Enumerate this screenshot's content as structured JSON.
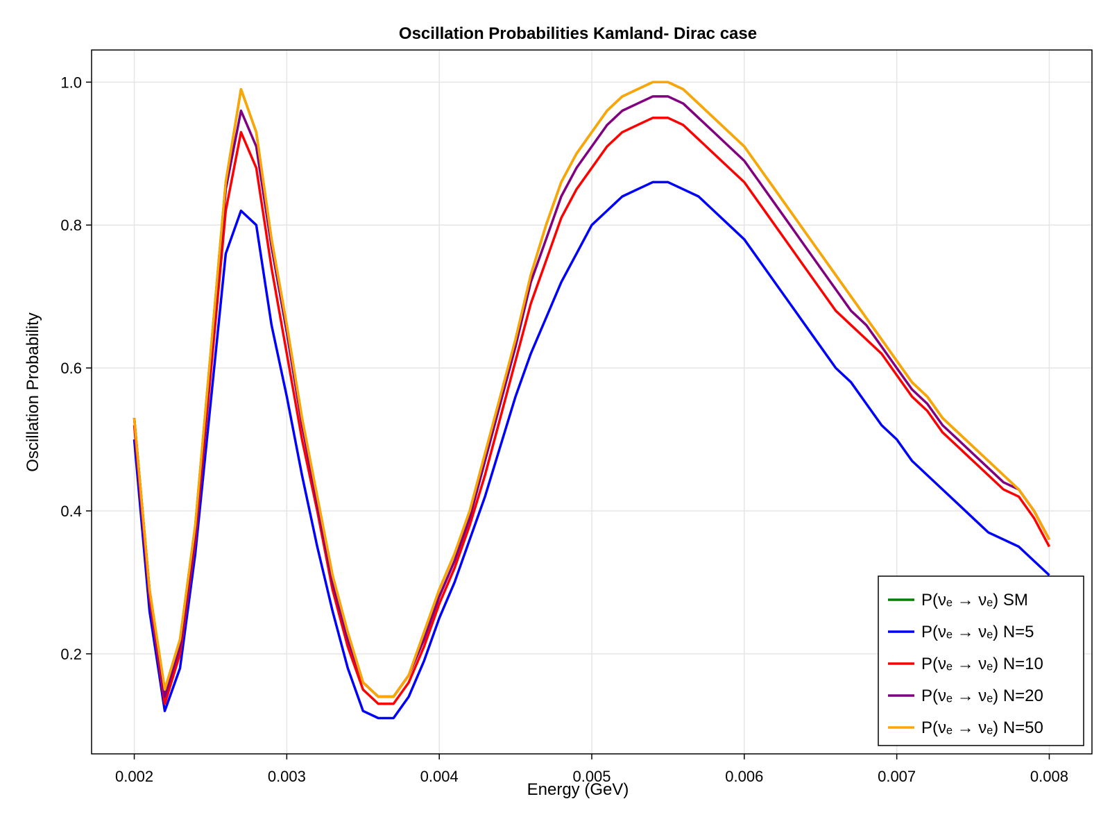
{
  "chart_data": {
    "type": "line",
    "title": "Oscillation Probabilities Kamland- Dirac case",
    "xlabel": "Energy (GeV)",
    "ylabel": "Oscillation Probability",
    "xlim": [
      0.00172,
      0.00828
    ],
    "ylim": [
      0.06,
      1.045
    ],
    "xticks": [
      0.002,
      0.003,
      0.004,
      0.005,
      0.006,
      0.007,
      0.008
    ],
    "xtick_labels": [
      "0.002",
      "0.003",
      "0.004",
      "0.005",
      "0.006",
      "0.007",
      "0.008"
    ],
    "yticks": [
      0.2,
      0.4,
      0.6,
      0.8,
      1.0
    ],
    "ytick_labels": [
      "0.2",
      "0.4",
      "0.6",
      "0.8",
      "1.0"
    ],
    "grid": true,
    "legend_position": "bottom-right",
    "x": [
      0.002,
      0.0021,
      0.0022,
      0.0023,
      0.0024,
      0.0025,
      0.0026,
      0.0027,
      0.0028,
      0.0029,
      0.003,
      0.0031,
      0.0032,
      0.0033,
      0.0034,
      0.0035,
      0.0036,
      0.0037,
      0.0038,
      0.0039,
      0.004,
      0.0041,
      0.0042,
      0.0043,
      0.0044,
      0.0045,
      0.0046,
      0.0047,
      0.0048,
      0.0049,
      0.005,
      0.0051,
      0.0052,
      0.0053,
      0.0054,
      0.0055,
      0.0056,
      0.0057,
      0.0058,
      0.0059,
      0.006,
      0.0061,
      0.0062,
      0.0063,
      0.0064,
      0.0065,
      0.0066,
      0.0067,
      0.0068,
      0.0069,
      0.007,
      0.0071,
      0.0072,
      0.0073,
      0.0074,
      0.0075,
      0.0076,
      0.0077,
      0.0078,
      0.0079,
      0.008
    ],
    "series": [
      {
        "name": "P(νₑ → νₑ) SM",
        "color": "#008000",
        "values": [
          0.53,
          0.29,
          0.15,
          0.22,
          0.38,
          0.62,
          0.86,
          0.99,
          0.93,
          0.78,
          0.66,
          0.53,
          0.42,
          0.31,
          0.23,
          0.16,
          0.14,
          0.14,
          0.17,
          0.23,
          0.29,
          0.34,
          0.4,
          0.48,
          0.56,
          0.64,
          0.73,
          0.8,
          0.86,
          0.9,
          0.93,
          0.96,
          0.98,
          0.99,
          1.0,
          1.0,
          0.99,
          0.97,
          0.95,
          0.93,
          0.91,
          0.88,
          0.85,
          0.82,
          0.79,
          0.76,
          0.73,
          0.7,
          0.67,
          0.64,
          0.61,
          0.58,
          0.56,
          0.53,
          0.51,
          0.49,
          0.47,
          0.45,
          0.43,
          0.4,
          0.36
        ]
      },
      {
        "name": "P(νₑ → νₑ) N=5",
        "color": "#0000ff",
        "values": [
          0.5,
          0.26,
          0.12,
          0.18,
          0.34,
          0.55,
          0.76,
          0.82,
          0.8,
          0.66,
          0.56,
          0.45,
          0.35,
          0.26,
          0.18,
          0.12,
          0.11,
          0.11,
          0.14,
          0.19,
          0.25,
          0.3,
          0.36,
          0.42,
          0.49,
          0.56,
          0.62,
          0.67,
          0.72,
          0.76,
          0.8,
          0.82,
          0.84,
          0.85,
          0.86,
          0.86,
          0.85,
          0.84,
          0.82,
          0.8,
          0.78,
          0.75,
          0.72,
          0.69,
          0.66,
          0.63,
          0.6,
          0.58,
          0.55,
          0.52,
          0.5,
          0.47,
          0.45,
          0.43,
          0.41,
          0.39,
          0.37,
          0.36,
          0.35,
          0.33,
          0.31
        ]
      },
      {
        "name": "P(νₑ →  νₑ) N=10",
        "color": "#ff0000",
        "values": [
          0.52,
          0.28,
          0.13,
          0.2,
          0.36,
          0.59,
          0.82,
          0.93,
          0.88,
          0.74,
          0.62,
          0.5,
          0.4,
          0.29,
          0.21,
          0.15,
          0.13,
          0.13,
          0.16,
          0.21,
          0.27,
          0.32,
          0.38,
          0.45,
          0.53,
          0.61,
          0.69,
          0.75,
          0.81,
          0.85,
          0.88,
          0.91,
          0.93,
          0.94,
          0.95,
          0.95,
          0.94,
          0.92,
          0.9,
          0.88,
          0.86,
          0.83,
          0.8,
          0.77,
          0.74,
          0.71,
          0.68,
          0.66,
          0.64,
          0.62,
          0.59,
          0.56,
          0.54,
          0.51,
          0.49,
          0.47,
          0.45,
          0.43,
          0.42,
          0.39,
          0.35
        ]
      },
      {
        "name": "P(νₑ →  νₑ) N=20",
        "color": "#800080",
        "values": [
          0.53,
          0.29,
          0.14,
          0.21,
          0.37,
          0.61,
          0.85,
          0.96,
          0.91,
          0.77,
          0.65,
          0.52,
          0.41,
          0.3,
          0.22,
          0.16,
          0.14,
          0.14,
          0.17,
          0.22,
          0.28,
          0.33,
          0.39,
          0.47,
          0.55,
          0.63,
          0.72,
          0.78,
          0.84,
          0.88,
          0.91,
          0.94,
          0.96,
          0.97,
          0.98,
          0.98,
          0.97,
          0.95,
          0.93,
          0.91,
          0.89,
          0.86,
          0.83,
          0.8,
          0.77,
          0.74,
          0.71,
          0.68,
          0.66,
          0.63,
          0.6,
          0.57,
          0.55,
          0.52,
          0.5,
          0.48,
          0.46,
          0.44,
          0.43,
          0.4,
          0.36
        ]
      },
      {
        "name": "P(νₑ →  νₑ) N=50",
        "color": "#ffa500",
        "values": [
          0.53,
          0.29,
          0.15,
          0.22,
          0.38,
          0.62,
          0.86,
          0.99,
          0.93,
          0.78,
          0.66,
          0.53,
          0.42,
          0.31,
          0.23,
          0.16,
          0.14,
          0.14,
          0.17,
          0.23,
          0.29,
          0.34,
          0.4,
          0.48,
          0.56,
          0.64,
          0.73,
          0.8,
          0.86,
          0.9,
          0.93,
          0.96,
          0.98,
          0.99,
          1.0,
          1.0,
          0.99,
          0.97,
          0.95,
          0.93,
          0.91,
          0.88,
          0.85,
          0.82,
          0.79,
          0.76,
          0.73,
          0.7,
          0.67,
          0.64,
          0.61,
          0.58,
          0.56,
          0.53,
          0.51,
          0.49,
          0.47,
          0.45,
          0.43,
          0.4,
          0.36
        ]
      }
    ]
  }
}
